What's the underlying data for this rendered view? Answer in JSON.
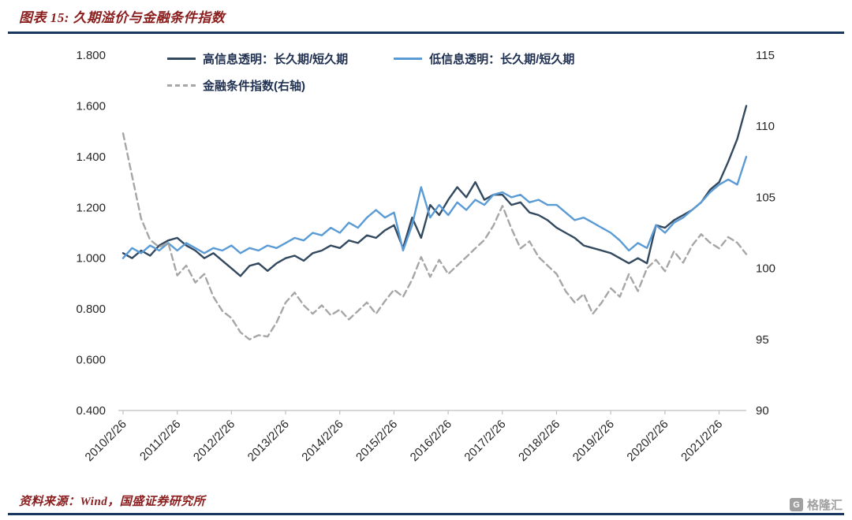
{
  "header": {
    "title": "图表 15: 久期溢价与金融条件指数"
  },
  "footer": {
    "source": "资料来源：Wind，国盛证券研究所",
    "watermark": "格隆汇",
    "watermark_icon": "G"
  },
  "colors": {
    "accent_red": "#8B1D1D",
    "divider_navy": "#17375E",
    "axis_line": "#BFBFBF",
    "series_high_navy": "#32495F",
    "series_low_blue": "#5B9BD5",
    "series_fci_gray": "#A6A6A6"
  },
  "chart_data": {
    "type": "line",
    "title": "久期溢价与金融条件指数",
    "xlabel": "",
    "ylabel": "",
    "grid": false,
    "legend_position": "top-inside",
    "x_start": 2010.15,
    "x_step": 0.1667,
    "x_tick_labels": [
      "2010/2/26",
      "2011/2/26",
      "2012/2/26",
      "2013/2/26",
      "2014/2/26",
      "2015/2/26",
      "2016/2/26",
      "2017/2/26",
      "2018/2/26",
      "2019/2/26",
      "2020/2/26",
      "2021/2/26"
    ],
    "left_axis": {
      "min": 0.4,
      "max": 1.8,
      "ticks": [
        "0.400",
        "0.600",
        "0.800",
        "1.000",
        "1.200",
        "1.400",
        "1.600",
        "1.800"
      ]
    },
    "right_axis": {
      "min": 90,
      "max": 115,
      "ticks": [
        "90",
        "95",
        "100",
        "105",
        "110",
        "115"
      ]
    },
    "series": [
      {
        "name": "高信息透明：长久期/短久期",
        "axis": "left",
        "color": "#32495F",
        "style": "solid",
        "values": [
          1.02,
          1.0,
          1.03,
          1.01,
          1.05,
          1.07,
          1.08,
          1.05,
          1.03,
          1.0,
          1.02,
          0.99,
          0.96,
          0.93,
          0.97,
          0.98,
          0.95,
          0.98,
          1.0,
          1.01,
          0.99,
          1.02,
          1.03,
          1.05,
          1.04,
          1.07,
          1.06,
          1.09,
          1.08,
          1.11,
          1.13,
          1.04,
          1.16,
          1.08,
          1.21,
          1.17,
          1.23,
          1.28,
          1.24,
          1.3,
          1.23,
          1.25,
          1.25,
          1.21,
          1.22,
          1.18,
          1.17,
          1.15,
          1.12,
          1.1,
          1.08,
          1.05,
          1.04,
          1.03,
          1.02,
          1.0,
          0.98,
          1.0,
          0.98,
          1.13,
          1.12,
          1.15,
          1.17,
          1.19,
          1.22,
          1.27,
          1.3,
          1.38,
          1.47,
          1.6
        ]
      },
      {
        "name": "低信息透明：长久期/短久期",
        "axis": "left",
        "color": "#5B9BD5",
        "style": "solid",
        "values": [
          1.0,
          1.04,
          1.02,
          1.05,
          1.03,
          1.06,
          1.03,
          1.06,
          1.04,
          1.02,
          1.04,
          1.03,
          1.05,
          1.02,
          1.04,
          1.03,
          1.05,
          1.04,
          1.06,
          1.08,
          1.07,
          1.1,
          1.09,
          1.12,
          1.1,
          1.14,
          1.12,
          1.16,
          1.19,
          1.16,
          1.18,
          1.03,
          1.13,
          1.28,
          1.16,
          1.21,
          1.17,
          1.22,
          1.19,
          1.23,
          1.21,
          1.25,
          1.26,
          1.24,
          1.25,
          1.22,
          1.23,
          1.21,
          1.21,
          1.18,
          1.15,
          1.16,
          1.14,
          1.12,
          1.1,
          1.07,
          1.03,
          1.06,
          1.04,
          1.13,
          1.1,
          1.14,
          1.16,
          1.19,
          1.22,
          1.26,
          1.29,
          1.31,
          1.29,
          1.4
        ]
      },
      {
        "name": "金融条件指数(右轴)",
        "axis": "right",
        "color": "#A6A6A6",
        "style": "dashed",
        "values": [
          109.5,
          106.5,
          103.5,
          102.0,
          101.5,
          101.8,
          99.5,
          100.2,
          99.0,
          99.6,
          98.0,
          97.0,
          96.5,
          95.5,
          95.0,
          95.3,
          95.2,
          96.2,
          97.6,
          98.3,
          97.4,
          96.8,
          97.4,
          96.7,
          97.1,
          96.4,
          97.0,
          97.6,
          96.8,
          97.7,
          98.5,
          98.0,
          99.2,
          100.8,
          99.4,
          100.6,
          99.6,
          100.2,
          100.8,
          101.4,
          102.0,
          103.0,
          104.4,
          102.8,
          101.4,
          101.9,
          100.8,
          100.2,
          99.6,
          98.4,
          97.6,
          98.2,
          96.8,
          97.6,
          98.6,
          98.0,
          99.6,
          98.4,
          100.0,
          100.6,
          99.8,
          101.2,
          100.4,
          101.6,
          102.4,
          101.8,
          101.4,
          102.2,
          101.8,
          101.0
        ]
      }
    ]
  }
}
